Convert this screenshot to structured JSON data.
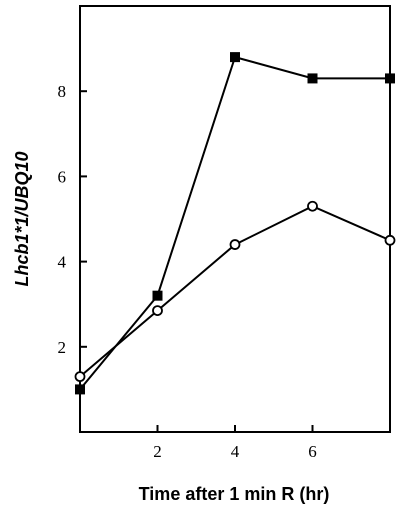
{
  "chart_data": {
    "type": "line",
    "xlabel": "Time after 1 min R (hr)",
    "ylabel": "Lhcb1*1/UBQ10",
    "xlim": [
      0,
      8
    ],
    "ylim": [
      0,
      10
    ],
    "x_ticks": [
      2,
      4,
      6
    ],
    "y_ticks": [
      2,
      4,
      6,
      8
    ],
    "grid": false,
    "series": [
      {
        "marker": "filled-square",
        "color": "#000000",
        "x": [
          0,
          2,
          4,
          6,
          8
        ],
        "y": [
          1.0,
          3.2,
          8.8,
          8.3,
          8.3
        ]
      },
      {
        "marker": "open-circle",
        "color": "#000000",
        "x": [
          0,
          2,
          4,
          6,
          8
        ],
        "y": [
          1.3,
          2.85,
          4.4,
          5.3,
          4.5
        ]
      }
    ]
  }
}
